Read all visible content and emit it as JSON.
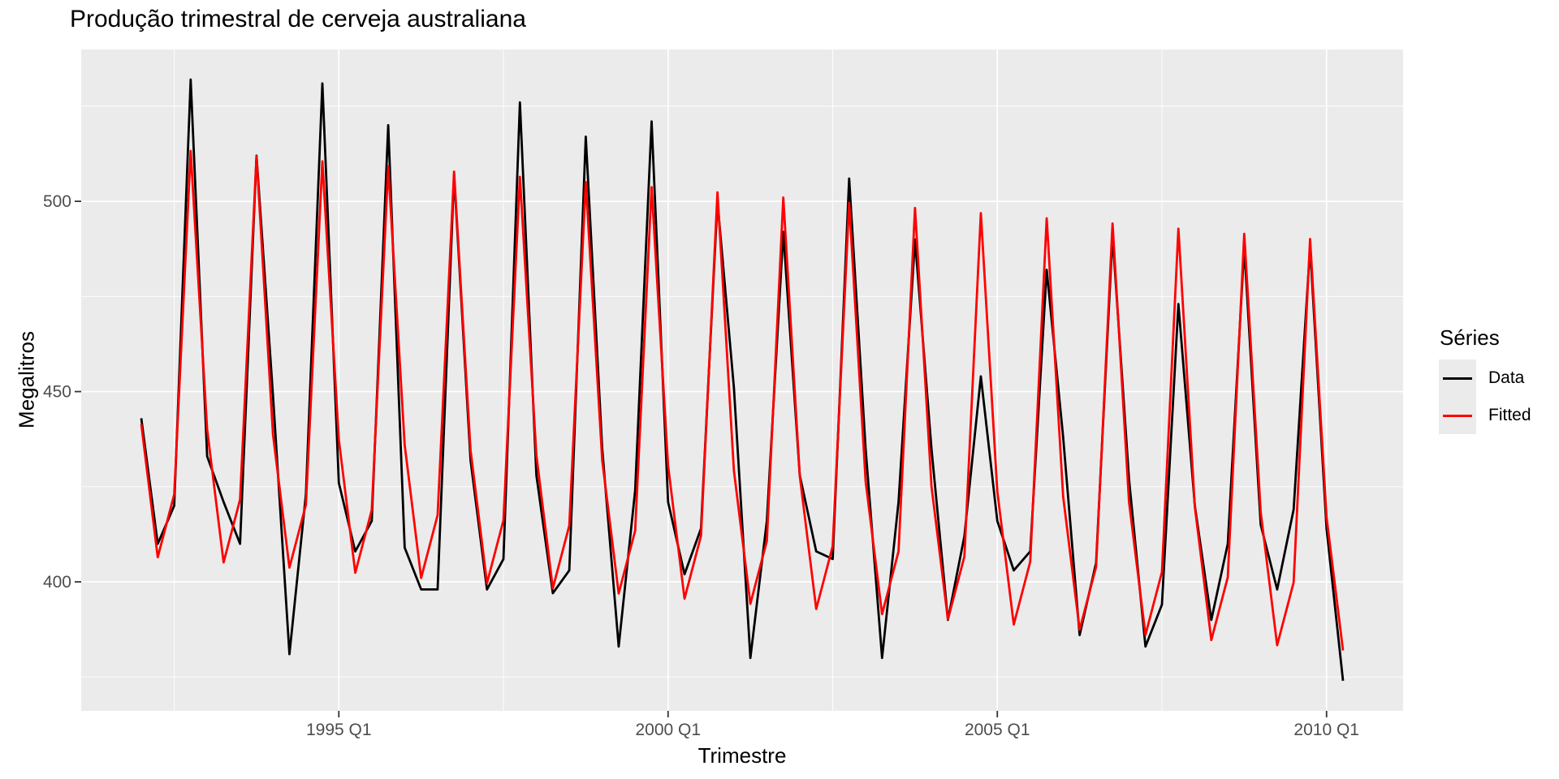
{
  "chart_data": {
    "type": "line",
    "title": "Produção trimestral de cerveja australiana",
    "xlabel": "Trimestre",
    "ylabel": "Megalitros",
    "legend": {
      "title": "Séries",
      "position": "right"
    },
    "x_start": 1992.0,
    "x_step": 0.25,
    "xlim": [
      1991.0875,
      2011.1625
    ],
    "ylim": [
      366.1,
      539.9
    ],
    "x_major_ticks": [
      {
        "value": 1995,
        "label": "1995 Q1"
      },
      {
        "value": 2000,
        "label": "2000 Q1"
      },
      {
        "value": 2005,
        "label": "2005 Q1"
      },
      {
        "value": 2010,
        "label": "2010 Q1"
      }
    ],
    "x_minor_ticks": [
      1992.5,
      1997.5,
      2002.5,
      2007.5
    ],
    "y_major_ticks": [
      {
        "value": 400,
        "label": "400"
      },
      {
        "value": 450,
        "label": "450"
      },
      {
        "value": 500,
        "label": "500"
      }
    ],
    "y_minor_ticks": [
      375,
      425,
      475,
      525
    ],
    "grid": true,
    "series": [
      {
        "name": "Data",
        "color": "#000000",
        "values": [
          443,
          410,
          420,
          532,
          433,
          421,
          410,
          512,
          449,
          381,
          423,
          531,
          426,
          408,
          416,
          520,
          409,
          398,
          398,
          507,
          432,
          398,
          406,
          526,
          428,
          397,
          403,
          517,
          435,
          383,
          424,
          521,
          421,
          402,
          414,
          500,
          451,
          380,
          416,
          492,
          428,
          408,
          406,
          506,
          435,
          380,
          421,
          490,
          435,
          390,
          412,
          454,
          416,
          403,
          408,
          482,
          438,
          386,
          405,
          491,
          427,
          383,
          394,
          473,
          420,
          390,
          410,
          488,
          415,
          398,
          419,
          488,
          414,
          374
        ]
      },
      {
        "name": "Fitted",
        "color": "#FF0000",
        "values": [
          441.46,
          406.46,
          422.96,
          513.23,
          440.1,
          405.1,
          421.6,
          511.87,
          438.74,
          403.74,
          420.24,
          510.51,
          437.38,
          402.38,
          418.88,
          509.15,
          436.02,
          401.02,
          417.52,
          507.79,
          434.66,
          399.66,
          416.16,
          506.43,
          433.3,
          398.3,
          414.8,
          505.07,
          431.94,
          396.94,
          413.44,
          503.71,
          430.58,
          395.58,
          412.08,
          502.35,
          429.22,
          394.22,
          410.72,
          500.99,
          427.86,
          392.86,
          409.36,
          499.63,
          426.5,
          391.5,
          408.0,
          498.27,
          425.14,
          390.14,
          406.64,
          496.91,
          423.78,
          388.78,
          405.28,
          495.55,
          422.42,
          387.42,
          403.92,
          494.19,
          421.06,
          386.06,
          402.56,
          492.83,
          419.7,
          384.7,
          401.2,
          491.47,
          418.34,
          383.34,
          399.84,
          490.11,
          416.98,
          381.98
        ]
      }
    ],
    "colors": {
      "panel_background": "#EBEBEB",
      "gridline": "#FFFFFF",
      "tick_label": "#4D4D4D",
      "tick_mark": "#333333",
      "text": "#000000",
      "legend_key_background": "#EBEBEB"
    }
  }
}
